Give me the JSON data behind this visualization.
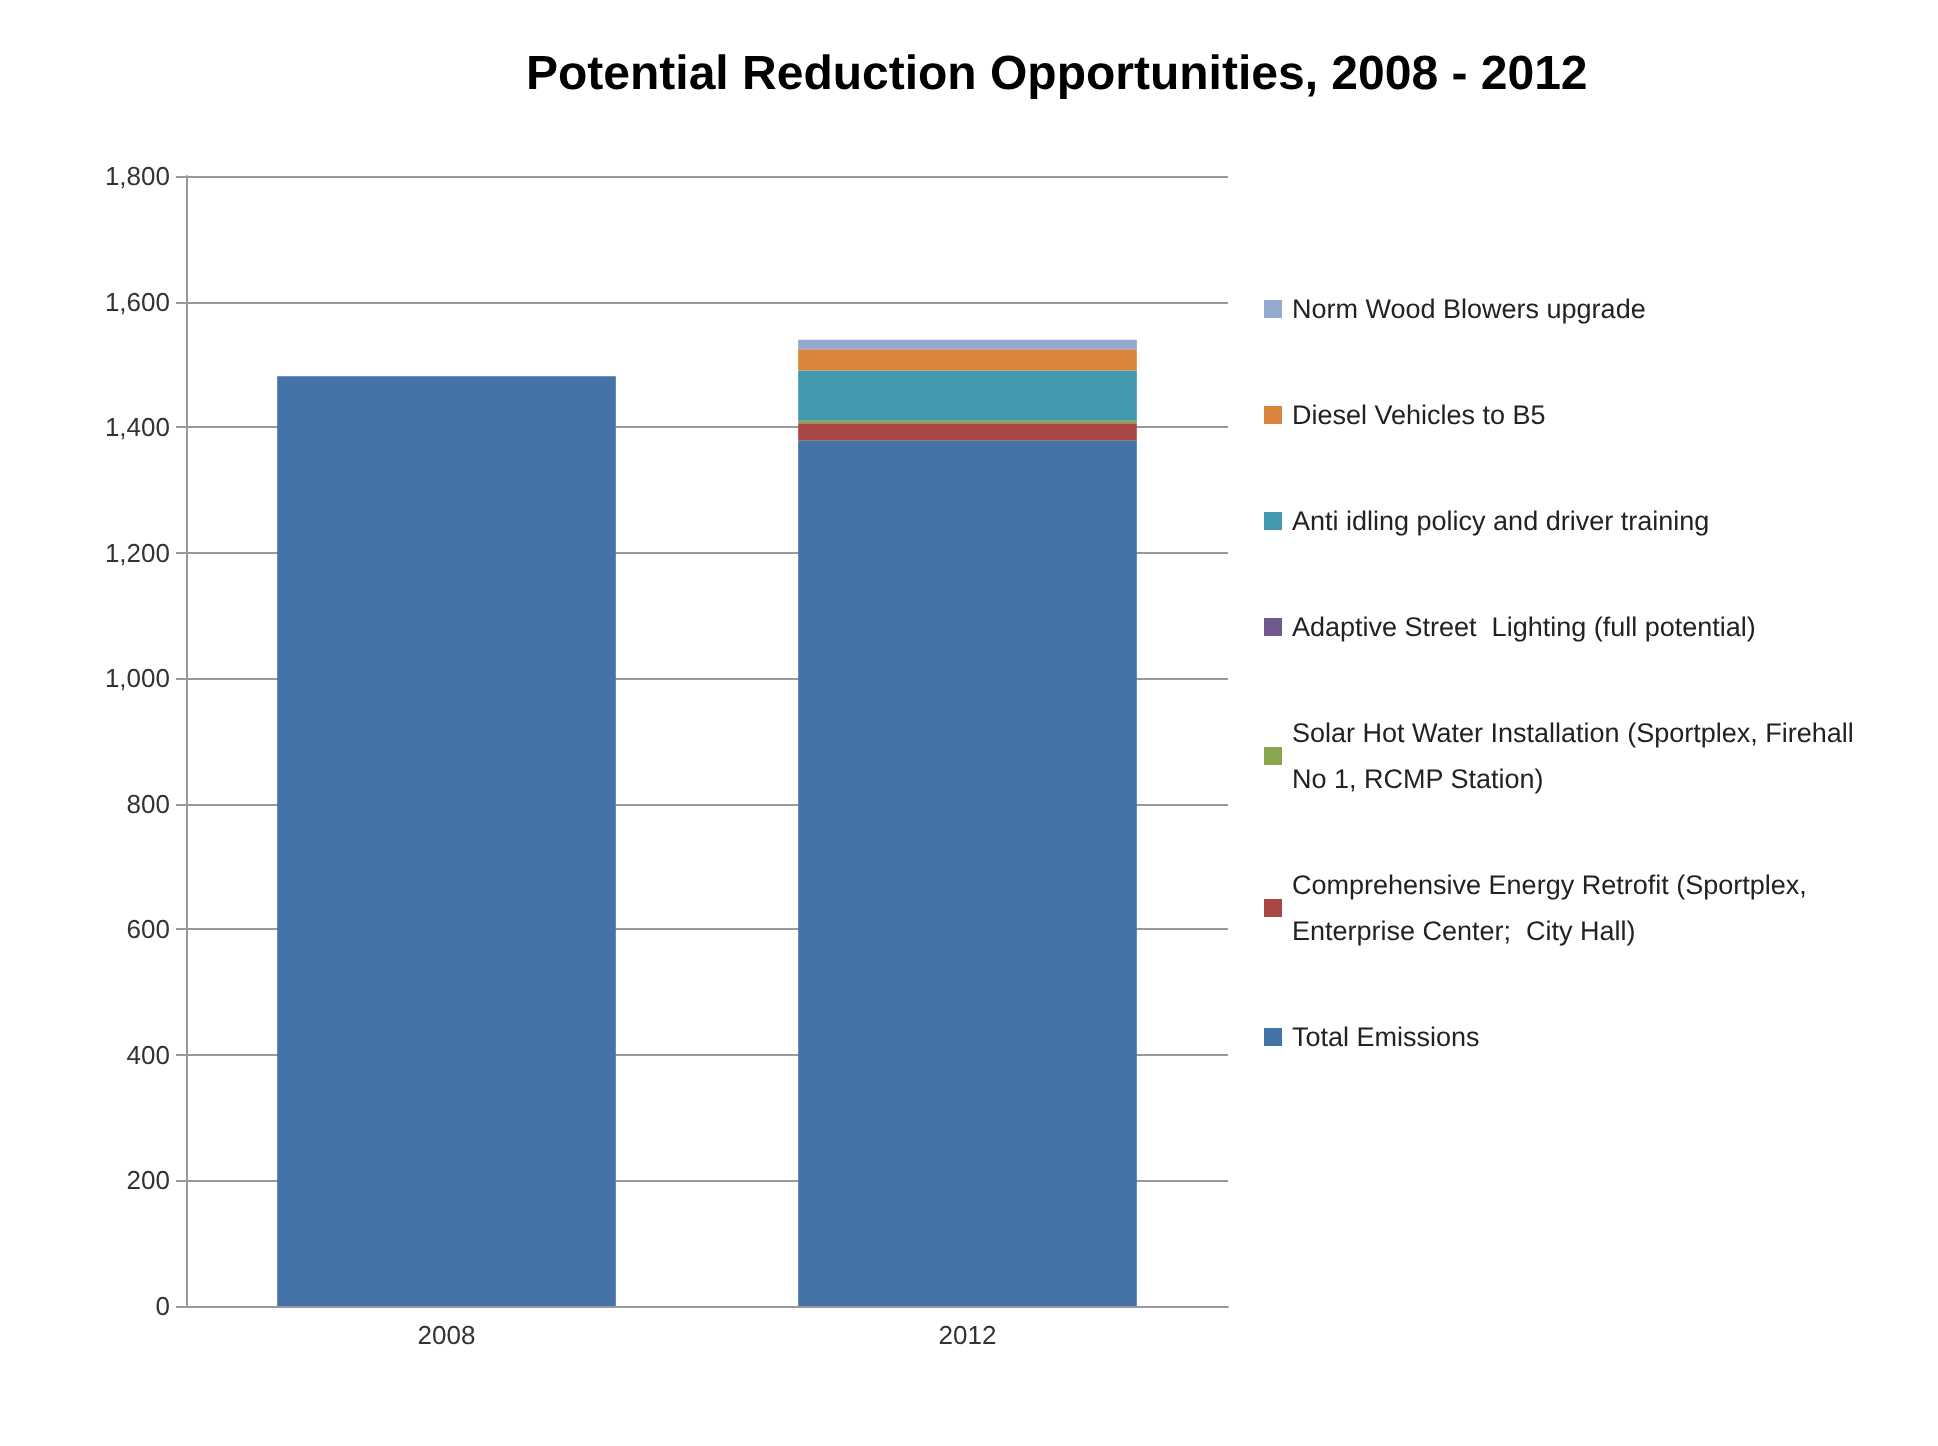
{
  "chart_data": {
    "type": "bar",
    "title": "Potential Reduction Opportunities, 2008 - 2012",
    "categories": [
      "2008",
      "2012"
    ],
    "stacked": true,
    "ylim": [
      0,
      1800
    ],
    "yticks": [
      {
        "value": 0,
        "label": "0"
      },
      {
        "value": 200,
        "label": "200"
      },
      {
        "value": 400,
        "label": "400"
      },
      {
        "value": 600,
        "label": "600"
      },
      {
        "value": 800,
        "label": "800"
      },
      {
        "value": 1000,
        "label": "1,000"
      },
      {
        "value": 1200,
        "label": "1,200"
      },
      {
        "value": 1400,
        "label": "1,400"
      },
      {
        "value": 1600,
        "label": "1,600"
      },
      {
        "value": 1800,
        "label": "1,800"
      }
    ],
    "grid": "y",
    "legend": "right",
    "series": [
      {
        "name": "Total Emissions",
        "color": "#4572a7",
        "values": [
          1481,
          1379
        ]
      },
      {
        "name": "Comprehensive Energy Retrofit (Sportplex, Enterprise Center;  City Hall)",
        "color": "#aa4643",
        "values": [
          null,
          27
        ]
      },
      {
        "name": "Solar Hot Water Installation (Sportplex, Firehall No 1, RCMP Station)",
        "color": "#89a54e",
        "values": [
          null,
          4
        ]
      },
      {
        "name": "Adaptive Street  Lighting (full potential)",
        "color": "#71588f",
        "values": [
          null,
          0
        ]
      },
      {
        "name": "Anti idling policy and driver training",
        "color": "#4198af",
        "values": [
          null,
          80
        ]
      },
      {
        "name": "Diesel Vehicles to B5",
        "color": "#db843d",
        "values": [
          null,
          34
        ]
      },
      {
        "name": "Norm Wood Blowers upgrade",
        "color": "#93a9cf",
        "values": [
          null,
          15
        ]
      }
    ]
  }
}
